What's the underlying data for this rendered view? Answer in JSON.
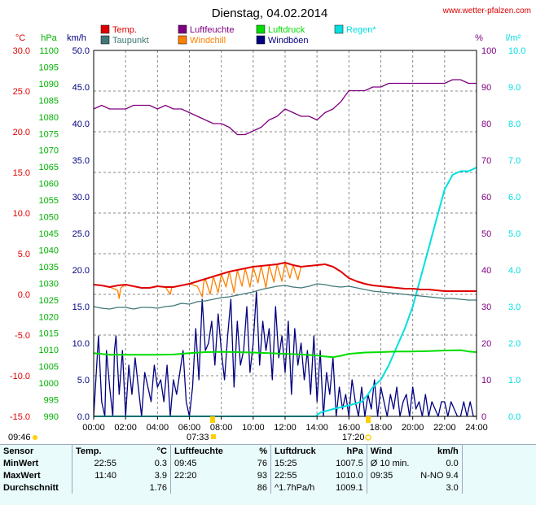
{
  "header": {
    "title": "Dienstag, 04.02.2014",
    "site": "www.wetter-pfalzen.com"
  },
  "units": {
    "temp": "°C",
    "pressure": "hPa",
    "wind": "km/h",
    "humidity": "%",
    "rain": "l/m²"
  },
  "legend": [
    {
      "label": "Temp.",
      "color": "#e00000"
    },
    {
      "label": "Luftfeuchte",
      "color": "#800080"
    },
    {
      "label": "Luftdruck",
      "color": "#00dd00"
    },
    {
      "label": "Regen*",
      "color": "#00e0e0"
    },
    {
      "label": "Taupunkt",
      "color": "#407878"
    },
    {
      "label": "Windchill",
      "color": "#ff8000"
    },
    {
      "label": "Windböen",
      "color": "#000080"
    }
  ],
  "sun": {
    "rise_label": "09:46",
    "dawn_label": "07:33",
    "dusk_label": "17:20"
  },
  "chart_data": {
    "type": "line",
    "title": "Dienstag, 04.02.2014",
    "x_ticks": [
      "00:00",
      "02:00",
      "04:00",
      "06:00",
      "08:00",
      "10:00",
      "12:00",
      "14:00",
      "16:00",
      "18:00",
      "20:00",
      "22:00",
      "24:00"
    ],
    "axes": {
      "temp": {
        "min": -15,
        "max": 30,
        "step": 5,
        "ticks": [
          "30.0",
          "25.0",
          "20.0",
          "15.0",
          "10.0",
          "5.0",
          "0.0",
          "-5.0",
          "-10.0",
          "-15.0"
        ],
        "color": "#e00000"
      },
      "pressure": {
        "min": 990,
        "max": 1100,
        "step": 5,
        "color": "#00b000"
      },
      "wind": {
        "min": 0,
        "max": 50,
        "ticks": [
          "50.0",
          "45.0",
          "40.0",
          "35.0",
          "30.0",
          "25.0",
          "20.0",
          "15.0",
          "10.0",
          "5.0",
          "0.0"
        ],
        "color": "#000080"
      },
      "humidity": {
        "min": 0,
        "max": 100,
        "ticks": [
          "100",
          "90",
          "80",
          "70",
          "60",
          "50",
          "40",
          "30",
          "20",
          "10",
          "0"
        ],
        "color": "#800080"
      },
      "rain": {
        "min": 0,
        "max": 10,
        "ticks": [
          "10.0",
          "9.0",
          "8.0",
          "7.0",
          "6.0",
          "5.0",
          "4.0",
          "3.0",
          "2.0",
          "1.0",
          "0.0"
        ],
        "color": "#00e0e0"
      }
    },
    "series": [
      {
        "name": "Luftfeuchte",
        "axis": "humidity",
        "color": "#800080",
        "x": [
          0,
          0.5,
          1,
          1.5,
          2,
          2.5,
          3,
          3.5,
          4,
          4.5,
          5,
          5.5,
          6,
          6.5,
          7,
          7.5,
          8,
          8.5,
          9,
          9.5,
          10,
          10.5,
          11,
          11.5,
          12,
          12.5,
          13,
          13.5,
          14,
          14.5,
          15,
          15.5,
          16,
          16.5,
          17,
          17.5,
          18,
          18.5,
          19,
          19.5,
          20,
          20.5,
          21,
          21.5,
          22,
          22.5,
          23,
          23.5,
          24
        ],
        "y": [
          84,
          85,
          84,
          84,
          84,
          85,
          85,
          85,
          84,
          85,
          84,
          84,
          83,
          82,
          81,
          80,
          80,
          79,
          77,
          77,
          78,
          79,
          81,
          82,
          84,
          83,
          82,
          82,
          81,
          83,
          84,
          86,
          89,
          89,
          89,
          90,
          90,
          91,
          91,
          91,
          91,
          91,
          91,
          91,
          91,
          92,
          92,
          91,
          91
        ]
      },
      {
        "name": "Temp.",
        "axis": "temp",
        "color": "#e00000",
        "x": [
          0,
          0.5,
          1,
          1.5,
          2,
          2.5,
          3,
          3.5,
          4,
          4.5,
          5,
          5.5,
          6,
          6.5,
          7,
          7.5,
          8,
          8.5,
          9,
          9.5,
          10,
          10.5,
          11,
          11.5,
          12,
          12.5,
          13,
          13.5,
          14,
          14.5,
          15,
          15.5,
          16,
          16.5,
          17,
          17.5,
          18,
          18.5,
          19,
          19.5,
          20,
          20.5,
          21,
          21.5,
          22,
          22.5,
          23,
          23.5,
          24
        ],
        "y": [
          1.2,
          1.1,
          0.9,
          1.1,
          1.2,
          1.0,
          0.8,
          0.8,
          1.0,
          0.9,
          0.9,
          1.1,
          1.3,
          1.6,
          1.9,
          2.2,
          2.5,
          2.8,
          3.0,
          3.2,
          3.4,
          3.5,
          3.6,
          3.7,
          3.9,
          3.6,
          3.4,
          3.5,
          3.6,
          3.7,
          3.4,
          2.8,
          2.0,
          1.6,
          1.3,
          1.1,
          1.0,
          0.9,
          0.8,
          0.7,
          0.7,
          0.6,
          0.6,
          0.5,
          0.4,
          0.4,
          0.4,
          0.4,
          0.4
        ]
      },
      {
        "name": "Taupunkt",
        "axis": "temp",
        "color": "#407878",
        "x": [
          0,
          0.5,
          1,
          1.5,
          2,
          2.5,
          3,
          3.5,
          4,
          4.5,
          5,
          5.5,
          6,
          6.5,
          7,
          7.5,
          8,
          8.5,
          9,
          9.5,
          10,
          10.5,
          11,
          11.5,
          12,
          12.5,
          13,
          13.5,
          14,
          14.5,
          15,
          15.5,
          16,
          16.5,
          17,
          17.5,
          18,
          18.5,
          19,
          19.5,
          20,
          20.5,
          21,
          21.5,
          22,
          22.5,
          23,
          23.5,
          24
        ],
        "y": [
          -1.5,
          -1.7,
          -1.8,
          -1.6,
          -1.6,
          -1.8,
          -1.6,
          -1.6,
          -1.7,
          -1.5,
          -1.4,
          -1.1,
          -1.2,
          -0.9,
          -0.8,
          -0.6,
          -0.4,
          -0.3,
          -0.1,
          0.1,
          0.3,
          0.6,
          0.8,
          1.0,
          1.1,
          0.9,
          0.8,
          1.0,
          1.3,
          1.2,
          1.0,
          0.9,
          1.0,
          0.8,
          0.6,
          0.4,
          0.3,
          0.2,
          0.1,
          0.0,
          -0.1,
          -0.2,
          -0.3,
          -0.4,
          -0.5,
          -0.5,
          -0.6,
          -0.7,
          -0.7
        ]
      },
      {
        "name": "Windchill",
        "axis": "temp",
        "color": "#ff8000",
        "x": [
          0,
          0.5,
          1,
          1.5,
          1.6,
          1.7,
          2,
          2.5,
          3,
          3.5,
          4,
          4.5,
          4.8,
          4.9,
          5,
          5.5,
          6,
          6.5,
          6.8,
          6.9,
          7,
          7.3,
          7.5,
          7.8,
          8,
          8.3,
          8.5,
          8.8,
          9,
          9.3,
          9.5,
          9.8,
          10,
          10.3,
          10.5,
          10.8,
          11,
          11.3,
          11.5,
          11.8,
          12,
          12.3,
          12.5,
          12.8,
          13,
          13.5,
          14,
          14.5,
          15,
          15.5,
          16,
          16.5,
          17,
          17.5,
          18,
          18.5,
          19,
          19.5,
          20,
          20.5,
          21,
          21.5,
          22,
          22.5,
          23,
          23.5,
          24
        ],
        "y": [
          1.2,
          1.1,
          0.9,
          0.5,
          -0.5,
          0.8,
          1.2,
          1.0,
          0.8,
          0.8,
          1.0,
          0.9,
          0.0,
          0.9,
          0.9,
          1.1,
          1.3,
          1.0,
          -0.3,
          1.5,
          1.9,
          0.0,
          2.2,
          0.2,
          2.5,
          0.9,
          2.8,
          0.2,
          3.0,
          1.0,
          3.2,
          0.9,
          3.4,
          1.4,
          3.5,
          0.8,
          3.6,
          1.5,
          3.7,
          1.6,
          3.9,
          2.0,
          3.6,
          1.8,
          3.4,
          3.5,
          3.6,
          3.7,
          3.4,
          2.8,
          2.0,
          1.6,
          1.3,
          1.1,
          1.0,
          0.9,
          0.8,
          0.7,
          0.7,
          0.6,
          0.6,
          0.5,
          0.4,
          0.4,
          0.4,
          0.4,
          0.4
        ]
      },
      {
        "name": "Luftdruck",
        "axis": "pressure",
        "color": "#00dd00",
        "x": [
          0,
          1,
          2,
          3,
          4,
          5,
          6,
          7,
          8,
          9,
          10,
          11,
          12,
          13,
          14,
          14.5,
          15,
          15.5,
          16,
          17,
          18,
          19,
          20,
          21,
          22,
          23,
          23.5,
          24
        ],
        "y": [
          1009.0,
          1008.5,
          1008.5,
          1008.5,
          1008.5,
          1008.6,
          1009.0,
          1009.3,
          1009.4,
          1009.3,
          1009.2,
          1009.0,
          1008.8,
          1008.6,
          1008.3,
          1008.0,
          1007.8,
          1008.2,
          1008.8,
          1009.2,
          1009.3,
          1009.5,
          1009.5,
          1009.6,
          1009.8,
          1009.9,
          1009.5,
          1009.3
        ]
      },
      {
        "name": "Regen*",
        "axis": "rain",
        "color": "#00e0e0",
        "x": [
          0,
          13.9,
          14.2,
          15,
          16,
          16.8,
          17.2,
          17.5,
          18,
          18.5,
          19,
          19.5,
          20,
          20.5,
          21,
          21.5,
          22,
          22.5,
          23,
          23.5,
          24
        ],
        "y": [
          0,
          0,
          0.1,
          0.2,
          0.3,
          0.4,
          0.6,
          0.8,
          1.0,
          1.4,
          1.9,
          2.4,
          3.0,
          3.8,
          4.6,
          5.4,
          6.2,
          6.6,
          6.7,
          6.7,
          6.8
        ]
      },
      {
        "name": "Windböen",
        "axis": "wind",
        "color": "#000080",
        "x": [
          0,
          0.3,
          0.5,
          0.7,
          0.8,
          1,
          1.2,
          1.3,
          1.4,
          1.6,
          1.8,
          2,
          2.2,
          2.4,
          2.6,
          2.8,
          3,
          3.2,
          3.4,
          3.6,
          3.8,
          4,
          4.2,
          4.4,
          4.6,
          4.8,
          5,
          5.2,
          5.4,
          5.6,
          5.8,
          6,
          6.2,
          6.4,
          6.6,
          6.8,
          7,
          7.2,
          7.4,
          7.6,
          7.8,
          8,
          8.2,
          8.4,
          8.6,
          8.8,
          9,
          9.2,
          9.4,
          9.6,
          9.8,
          10,
          10.2,
          10.4,
          10.6,
          10.8,
          11,
          11.2,
          11.4,
          11.6,
          11.8,
          12,
          12.2,
          12.4,
          12.6,
          12.8,
          13,
          13.2,
          13.4,
          13.6,
          13.8,
          14,
          14.2,
          14.4,
          14.6,
          14.8,
          15,
          15.2,
          15.4,
          15.6,
          15.8,
          16,
          16.2,
          16.4,
          16.6,
          16.8,
          17,
          17.2,
          17.4,
          17.6,
          17.8,
          18,
          18.2,
          18.4,
          18.6,
          18.8,
          19,
          19.2,
          19.4,
          19.6,
          19.8,
          20,
          20.2,
          20.4,
          20.6,
          20.8,
          21,
          21.2,
          21.4,
          21.6,
          21.8,
          22,
          22.2,
          22.4,
          22.6,
          22.8,
          23,
          23.2,
          23.4,
          23.6,
          23.8,
          24
        ],
        "y": [
          0,
          11,
          2,
          0,
          9,
          4,
          0,
          9,
          11,
          3,
          9,
          0,
          7,
          3,
          8,
          4,
          0,
          6,
          4,
          2,
          7,
          4,
          5,
          2,
          7,
          0,
          5,
          3,
          6,
          9,
          2,
          0,
          4,
          12,
          5,
          16,
          9,
          10,
          13,
          7,
          14,
          9,
          5,
          11,
          16,
          4,
          13,
          7,
          9,
          15,
          6,
          10,
          17,
          7,
          13,
          9,
          12,
          5,
          15,
          8,
          11,
          6,
          13,
          3,
          12,
          7,
          10,
          5,
          9,
          3,
          11,
          2,
          9,
          0,
          6,
          3,
          8,
          0,
          4,
          1,
          3,
          0,
          5,
          2,
          0,
          4,
          0,
          3,
          1,
          5,
          0,
          4,
          2,
          0,
          3,
          1,
          4,
          0,
          2,
          3,
          0,
          4,
          1,
          2,
          0,
          3,
          0,
          2,
          1,
          0,
          2,
          2,
          0,
          2,
          1,
          0,
          0,
          2,
          0,
          2,
          0,
          0
        ]
      }
    ]
  },
  "stats": {
    "header": {
      "sensor": "Sensor",
      "temp": "Temp.",
      "temp_unit": "°C",
      "hum": "Luftfeuchte",
      "hum_unit": "%",
      "press": "Luftdruck",
      "press_unit": "hPa",
      "wind": "Wind",
      "wind_unit": "km/h"
    },
    "rows": [
      {
        "label": "MinWert",
        "t_time": "22:55",
        "t_val": "0.3",
        "h_time": "09:45",
        "h_val": "76",
        "p_time": "15:25",
        "p_val": "1007.5",
        "w_time": "Ø 10 min.",
        "w_val": "0.0"
      },
      {
        "label": "MaxWert",
        "t_time": "11:40",
        "t_val": "3.9",
        "h_time": "22:20",
        "h_val": "93",
        "p_time": "22:55",
        "p_val": "1010.0",
        "w_time": "09:35",
        "w_val": "N-NO 9.4"
      },
      {
        "label": "Durchschnitt",
        "t_time": "",
        "t_val": "1.76",
        "h_time": "",
        "h_val": "86",
        "p_time": "^1.7hPa/h",
        "p_val": "1009.1",
        "w_time": "",
        "w_val": "3.0"
      }
    ]
  }
}
